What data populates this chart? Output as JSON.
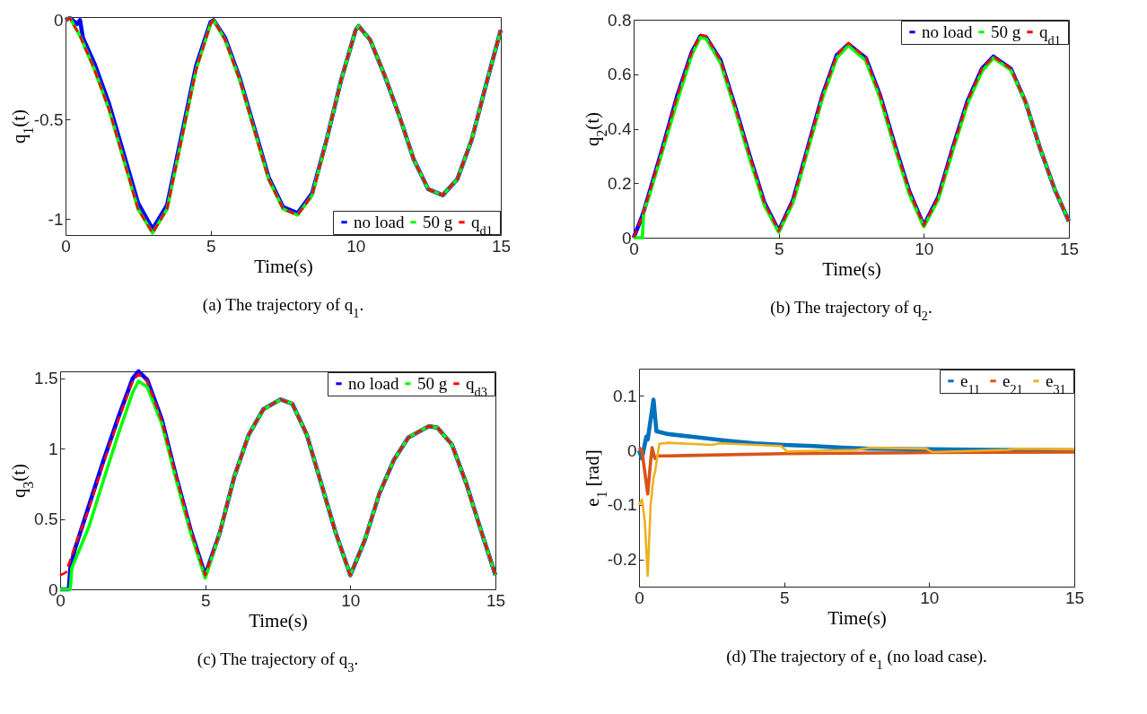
{
  "chart_data": [
    {
      "type": "line",
      "xlabel": "Time(s)",
      "ylabel": "q$_{1}$(t)",
      "annotations": [
        "(a) The trajectory of q$_{1}$."
      ],
      "xlim": [
        0,
        15
      ],
      "ylim": [
        -1.08,
        0.015
      ],
      "xticks": [
        0,
        5,
        10,
        15
      ],
      "yticks": [
        -1,
        -0.5,
        0
      ],
      "legend": "bottom right",
      "series": [
        {
          "name": "no load",
          "color": "#0000ff",
          "line_style": "solid",
          "x": [
            0,
            0.15,
            0.4,
            0.5,
            0.6,
            1,
            1.5,
            2,
            2.5,
            3,
            3.5,
            4,
            4.5,
            5,
            5.1,
            5.5,
            6,
            6.5,
            7,
            7.5,
            8,
            8.5,
            9,
            9.5,
            10,
            10.1,
            10.5,
            11,
            11.5,
            12,
            12.5,
            13,
            13.5,
            14,
            14.5,
            15
          ],
          "values": [
            0,
            0.01,
            -0.02,
            0,
            -0.09,
            -0.22,
            -0.42,
            -0.67,
            -0.92,
            -1.05,
            -0.93,
            -0.58,
            -0.23,
            -0.01,
            0,
            -0.09,
            -0.29,
            -0.54,
            -0.79,
            -0.94,
            -0.97,
            -0.87,
            -0.6,
            -0.3,
            -0.05,
            -0.03,
            -0.1,
            -0.28,
            -0.48,
            -0.7,
            -0.85,
            -0.88,
            -0.8,
            -0.6,
            -0.32,
            -0.05
          ]
        },
        {
          "name": "50 g",
          "color": "#00ff00",
          "line_style": "solid",
          "x": [
            0,
            0.15,
            0.5,
            1,
            1.5,
            2,
            2.5,
            3,
            3.5,
            4,
            4.5,
            5,
            5.1,
            5.5,
            6,
            6.5,
            7,
            7.5,
            8,
            8.5,
            9,
            9.5,
            10,
            10.1,
            10.5,
            11,
            11.5,
            12,
            12.5,
            13,
            13.5,
            14,
            14.5,
            15
          ],
          "values": [
            0,
            0.01,
            -0.08,
            -0.25,
            -0.45,
            -0.7,
            -0.95,
            -1.07,
            -0.95,
            -0.6,
            -0.25,
            -0.02,
            0,
            -0.1,
            -0.3,
            -0.55,
            -0.8,
            -0.95,
            -0.98,
            -0.88,
            -0.6,
            -0.3,
            -0.05,
            -0.03,
            -0.1,
            -0.28,
            -0.48,
            -0.7,
            -0.85,
            -0.88,
            -0.8,
            -0.6,
            -0.32,
            -0.05
          ]
        },
        {
          "name": "q$_{d1}$",
          "color": "#ff0000",
          "line_style": "dashed",
          "x": [
            0,
            0.15,
            0.5,
            1,
            1.5,
            2,
            2.5,
            3,
            3.5,
            4,
            4.5,
            5,
            5.1,
            5.5,
            6,
            6.5,
            7,
            7.5,
            8,
            8.5,
            9,
            9.5,
            10,
            10.1,
            10.5,
            11,
            11.5,
            12,
            12.5,
            13,
            13.5,
            14,
            14.5,
            15
          ],
          "values": [
            0,
            0.01,
            -0.08,
            -0.25,
            -0.45,
            -0.7,
            -0.95,
            -1.07,
            -0.95,
            -0.6,
            -0.25,
            -0.02,
            0,
            -0.1,
            -0.3,
            -0.55,
            -0.8,
            -0.95,
            -0.98,
            -0.88,
            -0.6,
            -0.3,
            -0.05,
            -0.03,
            -0.1,
            -0.28,
            -0.48,
            -0.7,
            -0.85,
            -0.88,
            -0.8,
            -0.6,
            -0.32,
            -0.05
          ]
        }
      ]
    },
    {
      "type": "line",
      "xlabel": "Time(s)",
      "ylabel": "q$_{2}$(t)",
      "annotations": [
        "(b) The trajectory of q$_{2}$."
      ],
      "xlim": [
        0,
        15
      ],
      "ylim": [
        0,
        0.8
      ],
      "xticks": [
        0,
        5,
        10,
        15
      ],
      "yticks": [
        0,
        0.2,
        0.4,
        0.6,
        0.8
      ],
      "legend": "top right",
      "series": [
        {
          "name": "no load",
          "color": "#0000ff",
          "line_style": "solid",
          "x": [
            0,
            0.3,
            0.5,
            1,
            1.5,
            2,
            2.3,
            2.5,
            3,
            3.5,
            4,
            4.5,
            5,
            5.5,
            6,
            6.5,
            7,
            7.4,
            8,
            8.5,
            9,
            9.5,
            10,
            10.5,
            11,
            11.5,
            12,
            12.4,
            13,
            13.5,
            14,
            14.5,
            15
          ],
          "values": [
            0,
            0.08,
            0.15,
            0.33,
            0.52,
            0.68,
            0.74,
            0.735,
            0.65,
            0.48,
            0.3,
            0.13,
            0.025,
            0.14,
            0.33,
            0.52,
            0.67,
            0.71,
            0.66,
            0.52,
            0.34,
            0.17,
            0.045,
            0.15,
            0.33,
            0.5,
            0.62,
            0.665,
            0.62,
            0.5,
            0.33,
            0.18,
            0.06
          ]
        },
        {
          "name": "50 g",
          "color": "#00ff00",
          "line_style": "solid",
          "x": [
            0,
            0.3,
            0.35,
            0.5,
            1,
            1.5,
            2,
            2.3,
            2.5,
            3,
            3.5,
            4,
            4.5,
            5,
            5.5,
            6,
            6.5,
            7,
            7.4,
            8,
            8.5,
            9,
            9.5,
            10,
            10.5,
            11,
            11.5,
            12,
            12.4,
            13,
            13.5,
            14,
            14.5,
            15
          ],
          "values": [
            0,
            0,
            0.1,
            0.14,
            0.32,
            0.5,
            0.67,
            0.735,
            0.73,
            0.64,
            0.47,
            0.29,
            0.12,
            0.02,
            0.13,
            0.32,
            0.51,
            0.66,
            0.705,
            0.65,
            0.51,
            0.33,
            0.16,
            0.04,
            0.14,
            0.32,
            0.49,
            0.61,
            0.66,
            0.615,
            0.5,
            0.33,
            0.18,
            0.06
          ]
        },
        {
          "name": "q$_{d1}$",
          "color": "#ff0000",
          "line_style": "dashed",
          "x": [
            0,
            0.3,
            0.5,
            1,
            1.5,
            2,
            2.3,
            2.5,
            3,
            3.5,
            4,
            4.5,
            5,
            5.5,
            6,
            6.5,
            7,
            7.4,
            8,
            8.5,
            9,
            9.5,
            10,
            10.5,
            11,
            11.5,
            12,
            12.4,
            13,
            13.5,
            14,
            14.5,
            15
          ],
          "values": [
            0,
            0.08,
            0.15,
            0.33,
            0.52,
            0.68,
            0.745,
            0.74,
            0.65,
            0.48,
            0.3,
            0.13,
            0.025,
            0.14,
            0.33,
            0.52,
            0.67,
            0.715,
            0.66,
            0.52,
            0.34,
            0.17,
            0.045,
            0.15,
            0.33,
            0.5,
            0.62,
            0.665,
            0.62,
            0.5,
            0.33,
            0.18,
            0.06
          ]
        }
      ]
    },
    {
      "type": "line",
      "xlabel": "Time(s)",
      "ylabel": "q$_{3}$(t)",
      "annotations": [
        "(c) The trajectory of q$_{3}$."
      ],
      "xlim": [
        0,
        15
      ],
      "ylim": [
        0,
        1.55
      ],
      "xticks": [
        0,
        5,
        10,
        15
      ],
      "yticks": [
        0,
        0.5,
        1,
        1.5
      ],
      "legend": "top right",
      "series": [
        {
          "name": "no load",
          "color": "#0000ff",
          "line_style": "solid",
          "x": [
            0,
            0.3,
            0.35,
            0.5,
            1,
            1.5,
            2,
            2.5,
            2.7,
            3,
            3.5,
            4,
            4.5,
            5,
            5.5,
            6,
            6.5,
            7,
            7.6,
            8,
            8.5,
            9,
            9.5,
            10,
            10.5,
            11,
            11.5,
            12,
            12.7,
            13,
            13.5,
            14,
            14.5,
            15
          ],
          "values": [
            0,
            0,
            0.15,
            0.28,
            0.6,
            0.92,
            1.22,
            1.5,
            1.55,
            1.49,
            1.21,
            0.8,
            0.42,
            0.1,
            0.4,
            0.8,
            1.1,
            1.28,
            1.35,
            1.32,
            1.1,
            0.75,
            0.4,
            0.1,
            0.35,
            0.68,
            0.92,
            1.08,
            1.16,
            1.15,
            1.03,
            0.75,
            0.42,
            0.1
          ]
        },
        {
          "name": "50 g",
          "color": "#00ff00",
          "line_style": "solid",
          "x": [
            0,
            0.35,
            0.4,
            1,
            1.5,
            2,
            2.5,
            2.7,
            3,
            3.5,
            4,
            4.5,
            5,
            5.5,
            6,
            6.5,
            7,
            7.6,
            8,
            8.5,
            9,
            9.5,
            10,
            10.5,
            11,
            11.5,
            12,
            12.7,
            13,
            13.5,
            14,
            14.5,
            15
          ],
          "values": [
            0,
            0,
            0.15,
            0.45,
            0.78,
            1.1,
            1.4,
            1.48,
            1.44,
            1.18,
            0.78,
            0.4,
            0.08,
            0.4,
            0.8,
            1.1,
            1.28,
            1.35,
            1.32,
            1.1,
            0.75,
            0.4,
            0.1,
            0.35,
            0.68,
            0.92,
            1.08,
            1.16,
            1.15,
            1.03,
            0.75,
            0.42,
            0.1
          ]
        },
        {
          "name": "q$_{d3}$",
          "color": "#ff0000",
          "line_style": "dashed",
          "x": [
            0,
            0.2,
            0.5,
            1,
            1.5,
            2,
            2.5,
            2.7,
            3,
            3.5,
            4,
            4.5,
            5,
            5.5,
            6,
            6.5,
            7,
            7.6,
            8,
            8.5,
            9,
            9.5,
            10,
            10.5,
            11,
            11.5,
            12,
            12.7,
            13,
            13.5,
            14,
            14.5,
            15
          ],
          "values": [
            0.1,
            0.12,
            0.3,
            0.58,
            0.9,
            1.2,
            1.48,
            1.53,
            1.48,
            1.2,
            0.8,
            0.42,
            0.1,
            0.4,
            0.8,
            1.1,
            1.28,
            1.35,
            1.32,
            1.1,
            0.75,
            0.4,
            0.1,
            0.35,
            0.68,
            0.92,
            1.08,
            1.16,
            1.15,
            1.03,
            0.75,
            0.42,
            0.1
          ]
        }
      ]
    },
    {
      "type": "line",
      "xlabel": "Time(s)",
      "ylabel": "e$_{1}$ [rad]",
      "annotations": [
        "(d) The trajectory of e$_{1}$ (no load case)."
      ],
      "xlim": [
        0,
        15
      ],
      "ylim": [
        -0.25,
        0.15
      ],
      "xticks": [
        0,
        5,
        10,
        15
      ],
      "yticks": [
        -0.2,
        -0.1,
        0,
        0.1
      ],
      "legend": "top right",
      "series": [
        {
          "name": "e$_{11}$",
          "color": "#0072bd",
          "line_style": "solid",
          "x": [
            0,
            0.1,
            0.25,
            0.3,
            0.5,
            0.6,
            1,
            2,
            3,
            4,
            5,
            6,
            7,
            8,
            10,
            12,
            15
          ],
          "values": [
            0,
            -0.015,
            0.025,
            0.02,
            0.093,
            0.035,
            0.03,
            0.024,
            0.018,
            0.013,
            0.01,
            0.008,
            0.005,
            0.003,
            0.002,
            0.001,
            0
          ]
        },
        {
          "name": "e$_{21}$",
          "color": "#d95319",
          "line_style": "solid",
          "x": [
            0,
            0.1,
            0.3,
            0.4,
            0.45,
            0.55,
            0.65,
            1,
            5,
            10,
            15
          ],
          "values": [
            0.005,
            0,
            -0.08,
            -0.02,
            0.005,
            -0.015,
            -0.01,
            -0.01,
            -0.006,
            -0.004,
            -0.003
          ]
        },
        {
          "name": "e$_{31}$",
          "color": "#edb120",
          "line_style": "solid",
          "x": [
            0,
            0.1,
            0.2,
            0.3,
            0.4,
            0.5,
            0.55,
            0.7,
            1,
            2.5,
            2.8,
            4.9,
            5.1,
            7.5,
            8,
            9.9,
            10.1,
            12.7,
            13,
            15
          ],
          "values": [
            -0.1,
            -0.09,
            -0.13,
            -0.23,
            -0.1,
            -0.05,
            -0.04,
            0.012,
            0.014,
            0.01,
            0.013,
            0.008,
            -0.002,
            0.001,
            0.005,
            0.003,
            -0.003,
            0.001,
            0.003,
            0.002
          ]
        }
      ]
    }
  ]
}
